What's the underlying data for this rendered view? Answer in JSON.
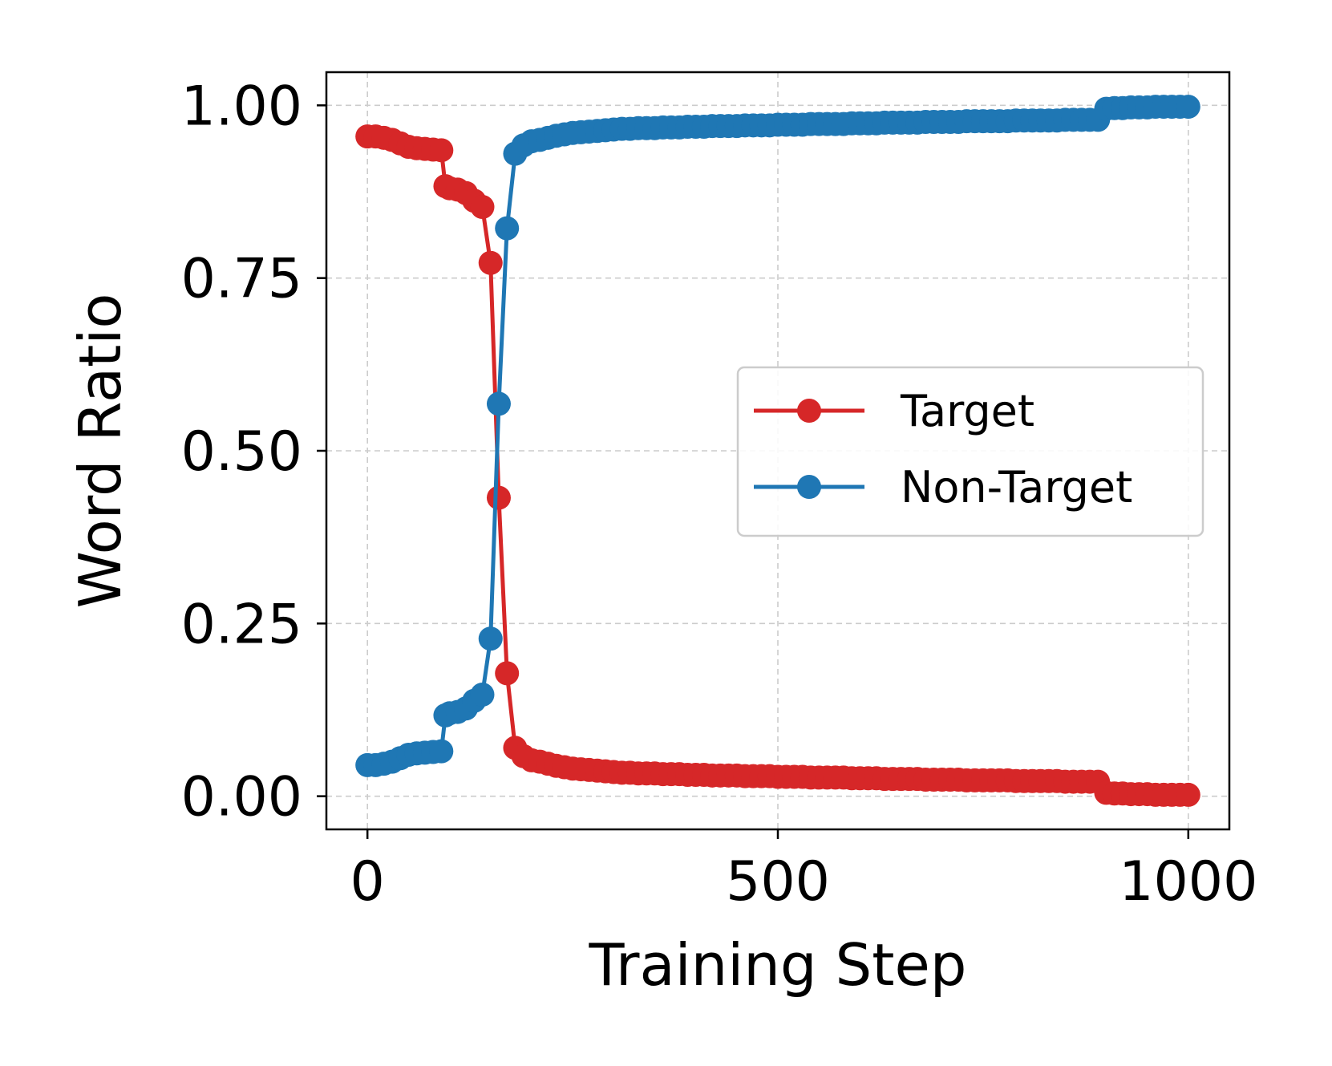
{
  "chart_data": {
    "type": "line",
    "xlabel": "Training Step",
    "ylabel": "Word Ratio",
    "xlim": [
      -50,
      1050
    ],
    "ylim": [
      -0.048,
      1.048
    ],
    "xticks": [
      0,
      500,
      1000
    ],
    "xtick_labels": [
      "0",
      "500",
      "1000"
    ],
    "yticks": [
      0.0,
      0.25,
      0.5,
      0.75,
      1.0
    ],
    "ytick_labels": [
      "0.00",
      "0.25",
      "0.50",
      "0.75",
      "1.00"
    ],
    "grid": true,
    "legend": {
      "location": "center-right"
    },
    "series": [
      {
        "name": "Target",
        "color": "#d62728",
        "x": [
          0,
          10,
          20,
          30,
          40,
          50,
          60,
          70,
          80,
          90,
          95,
          100,
          110,
          120,
          130,
          140,
          150,
          160,
          170,
          180,
          190,
          200,
          210,
          220,
          230,
          240,
          250,
          260,
          270,
          280,
          290,
          300,
          310,
          320,
          330,
          340,
          350,
          360,
          370,
          380,
          390,
          400,
          410,
          420,
          430,
          440,
          450,
          460,
          470,
          480,
          490,
          500,
          510,
          520,
          530,
          540,
          550,
          560,
          570,
          580,
          590,
          600,
          610,
          620,
          630,
          640,
          650,
          660,
          670,
          680,
          690,
          700,
          710,
          720,
          730,
          740,
          750,
          760,
          770,
          780,
          790,
          800,
          810,
          820,
          830,
          840,
          850,
          860,
          870,
          880,
          890,
          900,
          910,
          920,
          930,
          940,
          950,
          960,
          970,
          980,
          990,
          1000
        ],
        "y": [
          0.955,
          0.955,
          0.953,
          0.95,
          0.945,
          0.94,
          0.938,
          0.937,
          0.936,
          0.935,
          0.883,
          0.88,
          0.878,
          0.873,
          0.862,
          0.853,
          0.772,
          0.432,
          0.178,
          0.07,
          0.058,
          0.052,
          0.05,
          0.047,
          0.044,
          0.042,
          0.04,
          0.039,
          0.038,
          0.037,
          0.036,
          0.035,
          0.034,
          0.034,
          0.033,
          0.033,
          0.033,
          0.032,
          0.032,
          0.032,
          0.031,
          0.031,
          0.031,
          0.03,
          0.03,
          0.03,
          0.03,
          0.029,
          0.029,
          0.029,
          0.029,
          0.028,
          0.028,
          0.028,
          0.028,
          0.027,
          0.027,
          0.027,
          0.027,
          0.027,
          0.026,
          0.026,
          0.026,
          0.026,
          0.025,
          0.025,
          0.025,
          0.025,
          0.025,
          0.024,
          0.024,
          0.024,
          0.024,
          0.024,
          0.023,
          0.023,
          0.023,
          0.023,
          0.023,
          0.023,
          0.022,
          0.022,
          0.022,
          0.022,
          0.022,
          0.022,
          0.021,
          0.021,
          0.021,
          0.021,
          0.021,
          0.005,
          0.004,
          0.004,
          0.003,
          0.003,
          0.003,
          0.002,
          0.002,
          0.002,
          0.002,
          0.002
        ]
      },
      {
        "name": "Non-Target",
        "color": "#1f77b4",
        "x": [
          0,
          10,
          20,
          30,
          40,
          50,
          60,
          70,
          80,
          90,
          95,
          100,
          110,
          120,
          130,
          140,
          150,
          160,
          170,
          180,
          190,
          200,
          210,
          220,
          230,
          240,
          250,
          260,
          270,
          280,
          290,
          300,
          310,
          320,
          330,
          340,
          350,
          360,
          370,
          380,
          390,
          400,
          410,
          420,
          430,
          440,
          450,
          460,
          470,
          480,
          490,
          500,
          510,
          520,
          530,
          540,
          550,
          560,
          570,
          580,
          590,
          600,
          610,
          620,
          630,
          640,
          650,
          660,
          670,
          680,
          690,
          700,
          710,
          720,
          730,
          740,
          750,
          760,
          770,
          780,
          790,
          800,
          810,
          820,
          830,
          840,
          850,
          860,
          870,
          880,
          890,
          900,
          910,
          920,
          930,
          940,
          950,
          960,
          970,
          980,
          990,
          1000
        ],
        "y": [
          0.045,
          0.045,
          0.047,
          0.05,
          0.055,
          0.06,
          0.062,
          0.063,
          0.064,
          0.065,
          0.117,
          0.12,
          0.122,
          0.127,
          0.138,
          0.147,
          0.228,
          0.568,
          0.822,
          0.93,
          0.942,
          0.948,
          0.95,
          0.953,
          0.956,
          0.958,
          0.96,
          0.961,
          0.962,
          0.963,
          0.964,
          0.965,
          0.966,
          0.966,
          0.967,
          0.967,
          0.967,
          0.968,
          0.968,
          0.968,
          0.969,
          0.969,
          0.969,
          0.97,
          0.97,
          0.97,
          0.97,
          0.971,
          0.971,
          0.971,
          0.971,
          0.972,
          0.972,
          0.972,
          0.972,
          0.973,
          0.973,
          0.973,
          0.973,
          0.973,
          0.974,
          0.974,
          0.974,
          0.974,
          0.975,
          0.975,
          0.975,
          0.975,
          0.975,
          0.976,
          0.976,
          0.976,
          0.976,
          0.976,
          0.977,
          0.977,
          0.977,
          0.977,
          0.977,
          0.977,
          0.978,
          0.978,
          0.978,
          0.978,
          0.978,
          0.978,
          0.979,
          0.979,
          0.979,
          0.979,
          0.979,
          0.995,
          0.996,
          0.996,
          0.997,
          0.997,
          0.997,
          0.998,
          0.998,
          0.998,
          0.998,
          0.998
        ]
      }
    ]
  }
}
